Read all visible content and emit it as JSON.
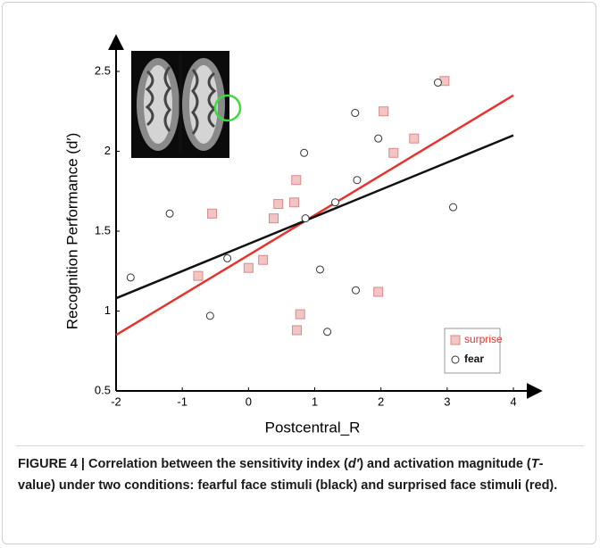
{
  "chart_data": {
    "type": "scatter",
    "xlabel": "Postcentral_R",
    "ylabel": "Recognition Performance (d′)",
    "xlim": [
      -2,
      4
    ],
    "xticks": [
      -2,
      -1,
      0,
      1,
      2,
      3,
      4
    ],
    "ylim": [
      0.5,
      2.5
    ],
    "yticks": [
      0.5,
      1,
      1.5,
      2,
      2.5
    ],
    "legend": "lower right",
    "series": [
      {
        "name": "surprise",
        "color": "#e8322e",
        "marker": "square",
        "x": [
          -0.55,
          -0.76,
          0,
          0.22,
          0.38,
          0.45,
          0.69,
          0.72,
          0.78,
          0.73,
          2.04,
          2.19,
          2.5,
          1.96,
          2.96
        ],
        "y": [
          1.61,
          1.22,
          1.27,
          1.32,
          1.58,
          1.67,
          1.68,
          1.82,
          0.98,
          0.88,
          2.25,
          1.99,
          2.08,
          1.12,
          2.44
        ],
        "fit": {
          "x": [
            -2,
            4
          ],
          "y": [
            0.85,
            2.35
          ]
        }
      },
      {
        "name": "fear",
        "color": "#111111",
        "marker": "circle",
        "x": [
          -1.78,
          -1.19,
          -0.58,
          -0.32,
          0.84,
          0.86,
          1.31,
          1.08,
          1.19,
          1.61,
          1.64,
          1.62,
          1.96,
          2.86,
          3.09
        ],
        "y": [
          1.21,
          1.61,
          0.97,
          1.33,
          1.99,
          1.58,
          1.68,
          1.26,
          0.87,
          2.24,
          1.82,
          1.13,
          2.08,
          2.43,
          1.65
        ],
        "fit": {
          "x": [
            -2,
            4
          ],
          "y": [
            1.08,
            2.1
          ]
        }
      }
    ]
  },
  "caption": [
    "FIGURE 4 | Correlation between the sensitivity index (",
    "d′",
    ") and activation magnitude (",
    "T",
    "-value) under two conditions: fearful face stimuli (black) and surprised face stimuli (red)."
  ]
}
